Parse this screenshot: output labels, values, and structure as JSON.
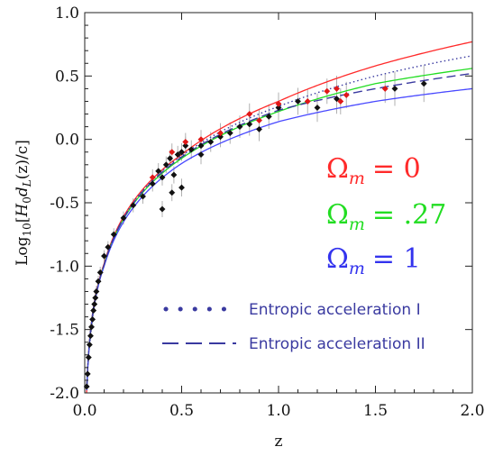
{
  "chart_data": {
    "type": "scatter",
    "title": "",
    "xlabel": "z",
    "ylabel": "Log10[H0 dL(z)/c]",
    "ylabel_parts": {
      "prefix": "Log",
      "sub": "10",
      "open": "[",
      "H": "H",
      "H_sub": "0",
      "d": "d",
      "d_sub": "L",
      "rest": "(z)/c]"
    },
    "xlim": [
      0.0,
      2.0
    ],
    "ylim": [
      -2.0,
      1.0
    ],
    "x_ticks": [
      "0.0",
      "0.5",
      "1.0",
      "1.5",
      "2.0"
    ],
    "y_ticks": [
      "-2.0",
      "-1.5",
      "-1.0",
      "-0.5",
      "0.0",
      "0.5",
      "1.0"
    ],
    "grid": false,
    "series": [
      {
        "name": "Ωm = 0",
        "kind": "model-curve",
        "omega_m": 0,
        "color": "#ff2a2a",
        "values_at": {
          "x": [
            0.1,
            0.5,
            1.0,
            1.5,
            2.0
          ],
          "y": [
            -0.98,
            -0.12,
            0.3,
            0.58,
            0.77
          ]
        }
      },
      {
        "name": "Ωm = .27",
        "kind": "model-curve",
        "omega_m": 0.27,
        "color": "#22dd22",
        "values_at": {
          "x": [
            0.1,
            0.5,
            1.0,
            1.5,
            2.0
          ],
          "y": [
            -0.99,
            -0.15,
            0.22,
            0.44,
            0.56
          ]
        }
      },
      {
        "name": "Ωm = 1",
        "kind": "model-curve",
        "omega_m": 1,
        "color": "#4848ff",
        "values_at": {
          "x": [
            0.1,
            0.5,
            1.0,
            1.5,
            2.0
          ],
          "y": [
            -1.0,
            -0.19,
            0.14,
            0.3,
            0.4
          ]
        }
      },
      {
        "name": "Entropic acceleration I",
        "kind": "dotted",
        "color": "#3a3aa0",
        "values_at": {
          "x": [
            0.1,
            0.5,
            1.0,
            1.5,
            2.0
          ],
          "y": [
            -0.99,
            -0.13,
            0.26,
            0.5,
            0.66
          ]
        }
      },
      {
        "name": "Entropic acceleration II",
        "kind": "dashed",
        "color": "#3a3aa0",
        "values_at": {
          "x": [
            0.1,
            0.5,
            1.0,
            1.5,
            2.0
          ],
          "y": [
            -0.99,
            -0.14,
            0.23,
            0.4,
            0.52
          ]
        }
      }
    ],
    "data_points_black": [
      {
        "x": 0.01,
        "y": -1.95
      },
      {
        "x": 0.015,
        "y": -1.85
      },
      {
        "x": 0.02,
        "y": -1.72
      },
      {
        "x": 0.025,
        "y": -1.62
      },
      {
        "x": 0.03,
        "y": -1.55
      },
      {
        "x": 0.035,
        "y": -1.48
      },
      {
        "x": 0.04,
        "y": -1.42
      },
      {
        "x": 0.045,
        "y": -1.35
      },
      {
        "x": 0.05,
        "y": -1.3
      },
      {
        "x": 0.055,
        "y": -1.25
      },
      {
        "x": 0.06,
        "y": -1.2
      },
      {
        "x": 0.07,
        "y": -1.12
      },
      {
        "x": 0.08,
        "y": -1.05
      },
      {
        "x": 0.1,
        "y": -0.92
      },
      {
        "x": 0.12,
        "y": -0.85
      },
      {
        "x": 0.15,
        "y": -0.75
      },
      {
        "x": 0.2,
        "y": -0.62
      },
      {
        "x": 0.25,
        "y": -0.52
      },
      {
        "x": 0.3,
        "y": -0.45
      },
      {
        "x": 0.35,
        "y": -0.35
      },
      {
        "x": 0.38,
        "y": -0.25
      },
      {
        "x": 0.4,
        "y": -0.3
      },
      {
        "x": 0.42,
        "y": -0.2
      },
      {
        "x": 0.44,
        "y": -0.15
      },
      {
        "x": 0.46,
        "y": -0.28
      },
      {
        "x": 0.48,
        "y": -0.12
      },
      {
        "x": 0.5,
        "y": -0.1
      },
      {
        "x": 0.52,
        "y": -0.05
      },
      {
        "x": 0.55,
        "y": -0.08
      },
      {
        "x": 0.6,
        "y": -0.05
      },
      {
        "x": 0.65,
        "y": -0.02
      },
      {
        "x": 0.7,
        "y": 0.02
      },
      {
        "x": 0.75,
        "y": 0.05
      },
      {
        "x": 0.8,
        "y": 0.1
      },
      {
        "x": 0.85,
        "y": 0.12
      },
      {
        "x": 0.9,
        "y": 0.08
      },
      {
        "x": 0.95,
        "y": 0.18
      },
      {
        "x": 1.0,
        "y": 0.25
      },
      {
        "x": 1.1,
        "y": 0.3
      },
      {
        "x": 1.2,
        "y": 0.25
      },
      {
        "x": 1.3,
        "y": 0.32
      },
      {
        "x": 1.6,
        "y": 0.4
      },
      {
        "x": 1.75,
        "y": 0.44
      },
      {
        "x": 0.5,
        "y": -0.38
      },
      {
        "x": 0.45,
        "y": -0.42
      },
      {
        "x": 0.4,
        "y": -0.55
      },
      {
        "x": 0.6,
        "y": -0.12
      }
    ],
    "data_points_red": [
      {
        "x": 0.35,
        "y": -0.3
      },
      {
        "x": 0.45,
        "y": -0.1
      },
      {
        "x": 0.52,
        "y": -0.02
      },
      {
        "x": 0.6,
        "y": 0.0
      },
      {
        "x": 0.7,
        "y": 0.05
      },
      {
        "x": 0.85,
        "y": 0.2
      },
      {
        "x": 0.9,
        "y": 0.15
      },
      {
        "x": 1.0,
        "y": 0.28
      },
      {
        "x": 1.15,
        "y": 0.3
      },
      {
        "x": 1.25,
        "y": 0.38
      },
      {
        "x": 1.3,
        "y": 0.4
      },
      {
        "x": 1.32,
        "y": 0.3
      },
      {
        "x": 1.35,
        "y": 0.35
      },
      {
        "x": 1.55,
        "y": 0.4
      }
    ],
    "annotations": [
      {
        "text_base": "Ω",
        "text_sub": "m",
        "text_eq": "= 0",
        "color": "#ff2a2a"
      },
      {
        "text_base": "Ω",
        "text_sub": "m",
        "text_eq": "= .27",
        "color": "#22dd22"
      },
      {
        "text_base": "Ω",
        "text_sub": "m",
        "text_eq": "= 1",
        "color": "#3333ee"
      }
    ],
    "legend": {
      "placement": "bottom-right",
      "entries": [
        {
          "label": "Entropic acceleration I",
          "style": "dotted"
        },
        {
          "label": "Entropic acceleration II",
          "style": "dashed"
        }
      ]
    }
  }
}
